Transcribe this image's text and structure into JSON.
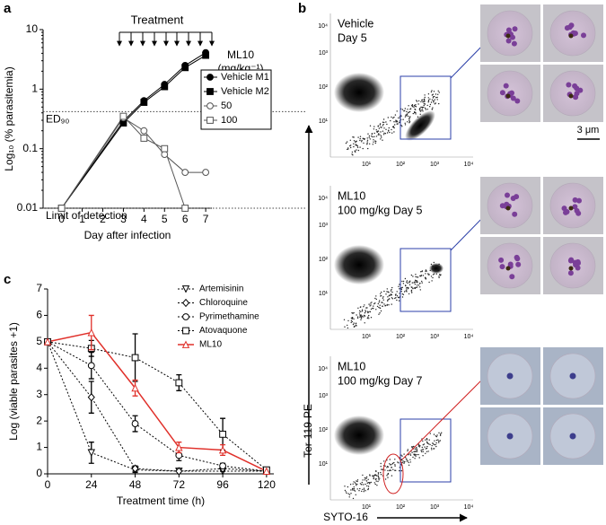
{
  "panel_labels": [
    "a",
    "b",
    "c"
  ],
  "chart_data": [
    {
      "type": "line",
      "annotation": "Treatment",
      "x_label": "Day after infection",
      "y_label": "Log₁₀ (% parasitemia)",
      "log_y": true,
      "x": [
        0,
        3,
        4,
        5,
        6,
        7
      ],
      "xlim": [
        -0.9,
        7.3
      ],
      "xticks": [
        0,
        1,
        2,
        3,
        4,
        5,
        6,
        7
      ],
      "ylim": [
        0.01,
        10
      ],
      "yticks": [
        0.01,
        0.1,
        1,
        10
      ],
      "legend": "right",
      "legend_title": [
        "ML10",
        "(mg/kg⁻¹)"
      ],
      "reference_lines": [
        {
          "value": 0.42,
          "label": "ED₉₀"
        },
        {
          "value": 0.01,
          "label": "Limit of detection"
        }
      ],
      "series": [
        {
          "name": "Vehicle M1",
          "color": "#000000",
          "marker": "circle",
          "filled": true,
          "values": [
            0.01,
            0.29,
            0.64,
            1.2,
            2.5,
            4.1
          ]
        },
        {
          "name": "Vehicle M2",
          "color": "#000000",
          "marker": "square",
          "filled": true,
          "values": [
            0.01,
            0.27,
            0.6,
            1.1,
            2.3,
            3.7
          ]
        },
        {
          "name": "50",
          "color": "#555555",
          "marker": "circle",
          "filled": false,
          "values": [
            0.01,
            0.33,
            0.2,
            0.08,
            0.04,
            0.04
          ]
        },
        {
          "name": "100",
          "color": "#555555",
          "marker": "square",
          "filled": false,
          "values": [
            0.01,
            0.35,
            0.15,
            0.1,
            0.01,
            null
          ]
        }
      ]
    },
    {
      "type": "line",
      "x_label": "Treatment time (h)",
      "y_label": "Log (viable parasites +1)",
      "x": [
        0,
        24,
        48,
        72,
        96,
        120
      ],
      "xlim": [
        0,
        124
      ],
      "xticks": [
        0,
        24,
        48,
        72,
        96,
        120
      ],
      "ylim": [
        0,
        7
      ],
      "yticks": [
        0,
        1,
        2,
        3,
        4,
        5,
        6,
        7
      ],
      "legend": "upper right",
      "series": [
        {
          "name": "Artemisinin",
          "color": "#000000",
          "marker": "triangle-down",
          "filled": false,
          "line_style": "dashed",
          "values": [
            5,
            0.8,
            0.15,
            0.1,
            0.1,
            0.1
          ],
          "errors": [
            0,
            0.4,
            0.1,
            0,
            0,
            0
          ]
        },
        {
          "name": "Chloroquine",
          "color": "#000000",
          "marker": "diamond",
          "filled": false,
          "line_style": "dashed",
          "values": [
            5,
            2.9,
            0.2,
            0.1,
            0.2,
            0.1
          ],
          "errors": [
            0,
            0.6,
            0.1,
            0,
            0.1,
            0
          ]
        },
        {
          "name": "Pyrimethamine",
          "color": "#000000",
          "marker": "circle",
          "filled": false,
          "line_style": "dashed",
          "values": [
            5,
            4.1,
            1.9,
            0.7,
            0.3,
            0.1
          ],
          "errors": [
            0,
            0.5,
            0.3,
            0.2,
            0.1,
            0
          ]
        },
        {
          "name": "Atovaquone",
          "color": "#000000",
          "marker": "square",
          "filled": false,
          "line_style": "dashed",
          "values": [
            5,
            4.75,
            4.4,
            3.45,
            1.5,
            0.15
          ],
          "errors": [
            0,
            0.3,
            0.9,
            0.3,
            0.6,
            0
          ]
        },
        {
          "name": "ML10",
          "color": "#e0302a",
          "marker": "triangle-up",
          "filled": false,
          "line_style": "solid",
          "values": [
            5,
            5.35,
            3.25,
            1.0,
            0.9,
            0.1
          ],
          "errors": [
            0,
            0.65,
            0.3,
            0.2,
            0.2,
            0
          ]
        }
      ]
    }
  ],
  "flow_panel": {
    "y_label": "Ter-119-PE",
    "x_label": "SYTO-16",
    "axis_ticks": [
      "10¹",
      "10²",
      "10³",
      "10⁴"
    ],
    "plots": [
      {
        "lines": [
          "Vehicle",
          "Day 5"
        ]
      },
      {
        "lines": [
          "ML10",
          "100 mg/kg Day 5"
        ]
      },
      {
        "lines": [
          "ML10",
          "100 mg/kg Day 7"
        ]
      }
    ],
    "scale_bar": "3 μm"
  }
}
